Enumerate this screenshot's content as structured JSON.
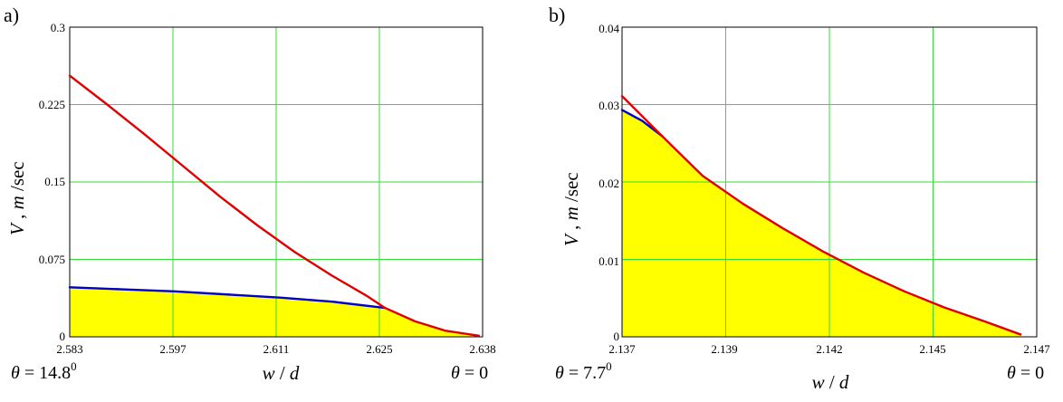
{
  "chart_data": [
    {
      "type": "line",
      "panel_label": "a)",
      "x_ticks": [
        "2.583",
        "2.597",
        "2.611",
        "2.625",
        "2.638"
      ],
      "y_ticks": [
        "0",
        "0.075",
        "0.15",
        "0.225",
        "0.3"
      ],
      "xlim": [
        2.583,
        2.638
      ],
      "ylim": [
        0,
        0.3
      ],
      "xlabel": {
        "v1": "w",
        "sep": " / ",
        "v2": "d"
      },
      "ylabel": {
        "v1": "V",
        "sep": " , ",
        "v2": "m",
        "unit": " /sec"
      },
      "left_annotation": {
        "sym": "θ",
        "text": " = 14.8",
        "sup": "0"
      },
      "right_annotation": {
        "sym": "θ",
        "text": " = 0"
      },
      "grid": true,
      "fill_color": "#ffff00",
      "series": [
        {
          "name": "red",
          "color": "#e00000",
          "x": [
            2.583,
            2.588,
            2.593,
            2.598,
            2.603,
            2.608,
            2.613,
            2.618,
            2.6225,
            2.625,
            2.629,
            2.633,
            2.6375
          ],
          "y": [
            0.253,
            0.225,
            0.196,
            0.166,
            0.136,
            0.108,
            0.082,
            0.059,
            0.04,
            0.028,
            0.015,
            0.006,
            0.001
          ]
        },
        {
          "name": "blue",
          "color": "#0000cc",
          "x": [
            2.583,
            2.59,
            2.597,
            2.604,
            2.611,
            2.618,
            2.625
          ],
          "y": [
            0.048,
            0.046,
            0.044,
            0.041,
            0.038,
            0.034,
            0.028
          ]
        },
        {
          "name": "boundary",
          "fill": true,
          "x": [
            2.583,
            2.59,
            2.597,
            2.604,
            2.611,
            2.618,
            2.625,
            2.629,
            2.633,
            2.6375
          ],
          "y": [
            0.048,
            0.046,
            0.044,
            0.041,
            0.038,
            0.034,
            0.028,
            0.015,
            0.006,
            0.001
          ]
        }
      ]
    },
    {
      "type": "line",
      "panel_label": "b)",
      "x_ticks": [
        "2.137",
        "2.139",
        "2.142",
        "2.145",
        "2.147"
      ],
      "y_ticks": [
        "0",
        "0.01",
        "0.02",
        "0.03",
        "0.04"
      ],
      "xlim": [
        2.137,
        2.1473
      ],
      "ylim": [
        0,
        0.04
      ],
      "xlabel": {
        "v1": "w",
        "sep": " / ",
        "v2": "d"
      },
      "ylabel": {
        "v1": "V",
        "sep": " , ",
        "v2": "m",
        "unit": " /sec"
      },
      "left_annotation": {
        "sym": "θ",
        "text": " = 7.7",
        "sup": "0"
      },
      "right_annotation": {
        "sym": "θ",
        "text": " = 0"
      },
      "grid": true,
      "fill_color": "#ffff00",
      "series": [
        {
          "name": "red",
          "color": "#e00000",
          "x": [
            2.137,
            2.1375,
            2.138,
            2.139,
            2.14,
            2.141,
            2.142,
            2.143,
            2.144,
            2.145,
            2.146,
            2.1469
          ],
          "y": [
            0.0311,
            0.0285,
            0.0259,
            0.0208,
            0.0172,
            0.014,
            0.011,
            0.0083,
            0.0059,
            0.0038,
            0.002,
            0.0003
          ]
        },
        {
          "name": "blue",
          "color": "#0000cc",
          "x": [
            2.137,
            2.1375,
            2.138
          ],
          "y": [
            0.0293,
            0.0279,
            0.0259
          ]
        },
        {
          "name": "boundary",
          "fill": true,
          "x": [
            2.137,
            2.1375,
            2.138,
            2.139,
            2.14,
            2.141,
            2.142,
            2.143,
            2.144,
            2.145,
            2.146,
            2.1469
          ],
          "y": [
            0.0293,
            0.0279,
            0.0259,
            0.0208,
            0.0172,
            0.014,
            0.011,
            0.0083,
            0.0059,
            0.0038,
            0.002,
            0.0003
          ]
        }
      ]
    }
  ]
}
